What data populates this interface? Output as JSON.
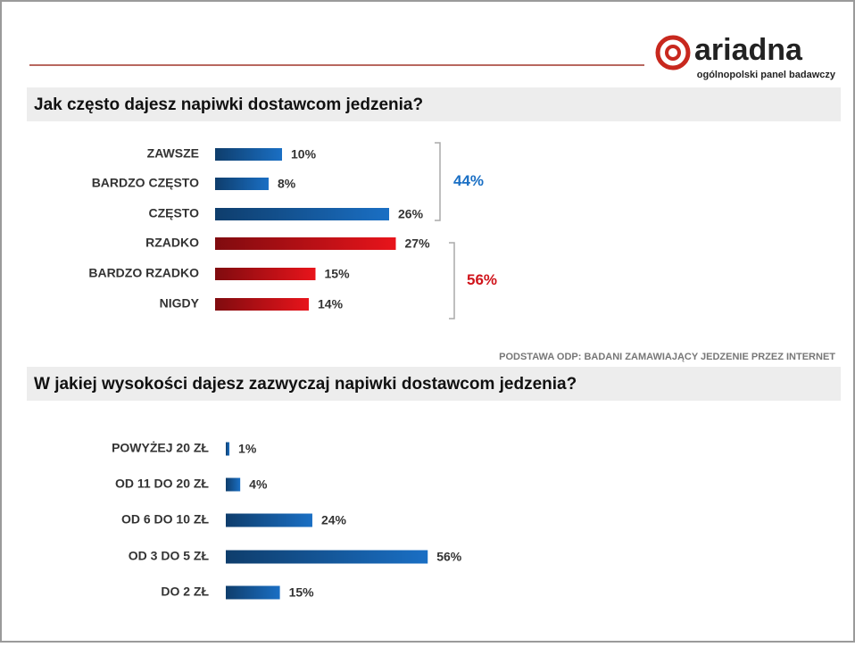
{
  "header": {
    "logo": "ariadna",
    "tagline": "ogólnopolski panel badawczy"
  },
  "note": "PODSTAWA ODP: BADANI ZAMAWIAJĄCY JEDZENIE  PRZEZ INTERNET",
  "chart_data": [
    {
      "type": "barh",
      "title": "Jak często dajesz napiwki dostawcom jedzenia?",
      "categories": [
        "ZAWSZE",
        "BARDZO CZĘSTO",
        "CZĘSTO",
        "RZADKO",
        "BARDZO RZADKO",
        "NIGDY"
      ],
      "values": [
        10,
        8,
        26,
        27,
        15,
        14
      ],
      "value_labels": [
        "10%",
        "8%",
        "26%",
        "27%",
        "15%",
        "14%"
      ],
      "colors": [
        "#1a6fc4",
        "#1a6fc4",
        "#1a6fc4",
        "#e8141b",
        "#e8141b",
        "#e8141b"
      ],
      "annotations": [
        {
          "label": "44%",
          "color": "#1a6fc4"
        },
        {
          "label": "56%",
          "color": "#d0141b"
        }
      ]
    },
    {
      "type": "barh",
      "title": "W jakiej wysokości dajesz zazwyczaj napiwki dostawcom jedzenia?",
      "categories": [
        "POWYŻEJ 20 ZŁ",
        "OD 11  DO 20 ZŁ",
        "OD 6 DO 10 ZŁ",
        "OD 3 DO 5 ZŁ",
        "DO 2 ZŁ"
      ],
      "values": [
        1,
        4,
        24,
        56,
        15
      ],
      "value_labels": [
        "1%",
        "4%",
        "24%",
        "56%",
        "15%"
      ],
      "colors": [
        "#1a6fc4",
        "#1a6fc4",
        "#1a6fc4",
        "#1a6fc4",
        "#1a6fc4"
      ]
    }
  ]
}
